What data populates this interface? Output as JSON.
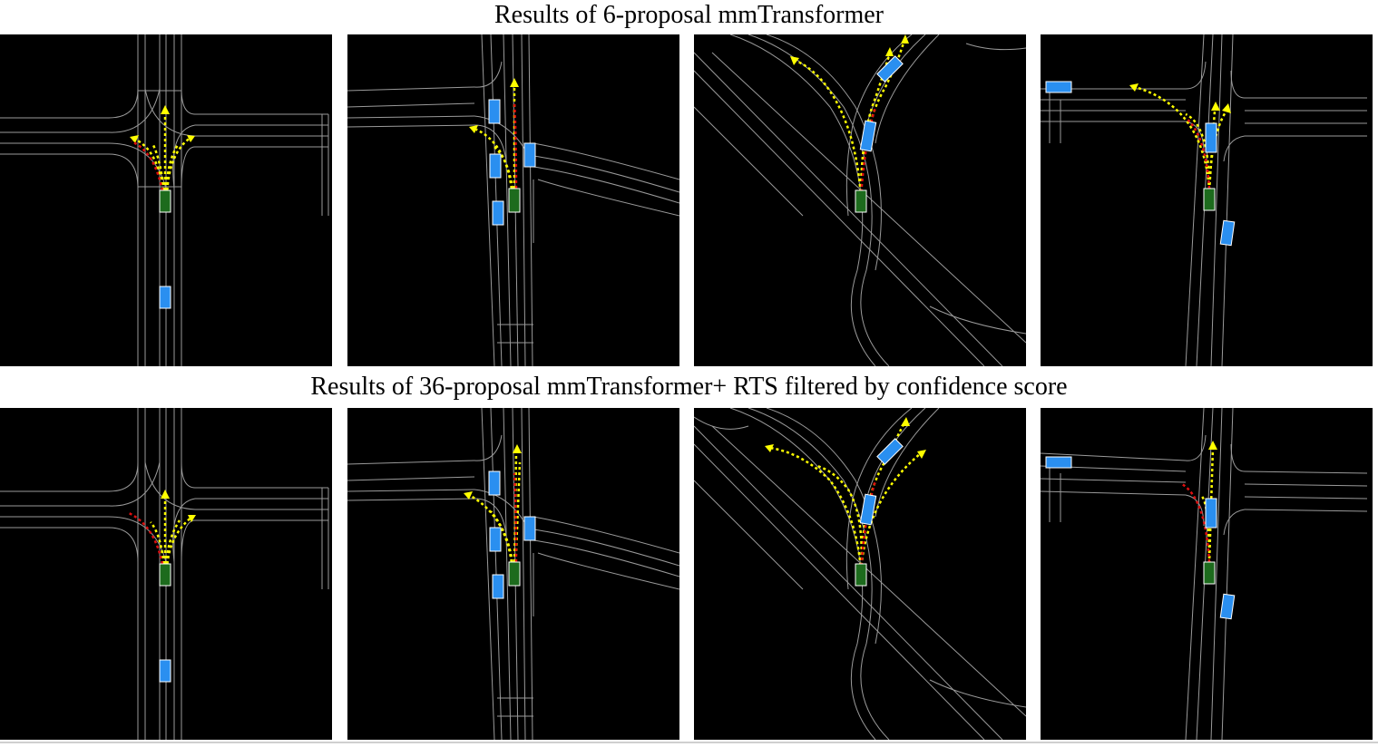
{
  "figure": {
    "row_titles": [
      "Results of 6-proposal mmTransformer",
      "Results of 36-proposal mmTransformer+ RTS filtered by confidence score"
    ]
  },
  "colors": {
    "background": "#000000",
    "lane": "#9a9a9a",
    "ego_vehicle": "#1d6b1d",
    "other_vehicle": "#2a8ff0",
    "prediction": "#ffff00",
    "ground_truth": "#e01010"
  },
  "rows": [
    {
      "name": "6-proposal",
      "scenes": [
        {
          "id": 1,
          "proposals": 6
        },
        {
          "id": 2,
          "proposals": 6
        },
        {
          "id": 3,
          "proposals": 6
        },
        {
          "id": 4,
          "proposals": 6
        }
      ]
    },
    {
      "name": "36-proposal-rts",
      "scenes": [
        {
          "id": 1,
          "proposals": 6
        },
        {
          "id": 2,
          "proposals": 6
        },
        {
          "id": 3,
          "proposals": 6
        },
        {
          "id": 4,
          "proposals": 6
        }
      ]
    }
  ]
}
